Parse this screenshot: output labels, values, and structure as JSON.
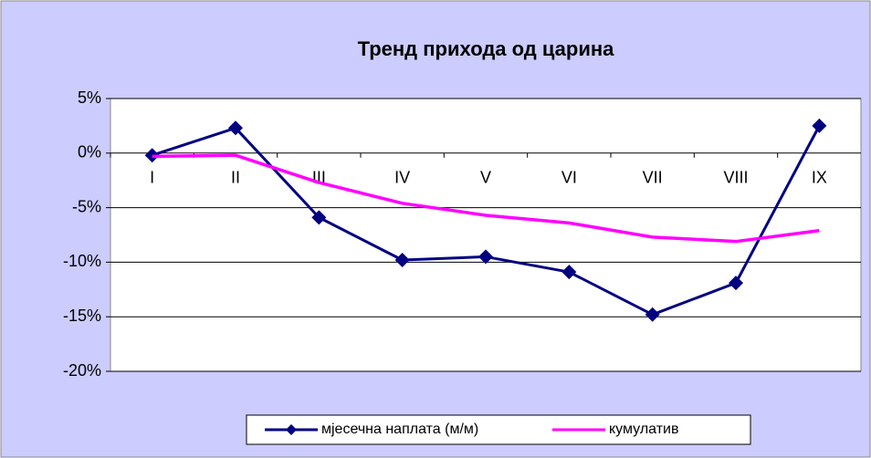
{
  "chart_data": {
    "type": "line",
    "title": "Тренд прихода од царина",
    "categories": [
      "I",
      "II",
      "III",
      "IV",
      "V",
      "VI",
      "VII",
      "VIII",
      "IX"
    ],
    "series": [
      {
        "name": "мјесечна наплата (м/м)",
        "color": "#000080",
        "values": [
          -0.2,
          2.3,
          -5.9,
          -9.8,
          -9.5,
          -10.9,
          -14.8,
          -11.9,
          2.5
        ]
      },
      {
        "name": "кумулатив",
        "color": "#ff00ff",
        "values": [
          -0.3,
          -0.2,
          -2.7,
          -4.6,
          -5.7,
          -6.4,
          -7.7,
          -8.1,
          -7.1
        ]
      }
    ],
    "ylim": [
      -20,
      5
    ],
    "yticks": [
      {
        "value": 5,
        "label": "5%"
      },
      {
        "value": 0,
        "label": "0%"
      },
      {
        "value": -5,
        "label": "-5%"
      },
      {
        "value": -10,
        "label": "-10%"
      },
      {
        "value": -15,
        "label": "-15%"
      },
      {
        "value": -20,
        "label": "-20%"
      }
    ],
    "grid": true,
    "legend": "bottom"
  }
}
